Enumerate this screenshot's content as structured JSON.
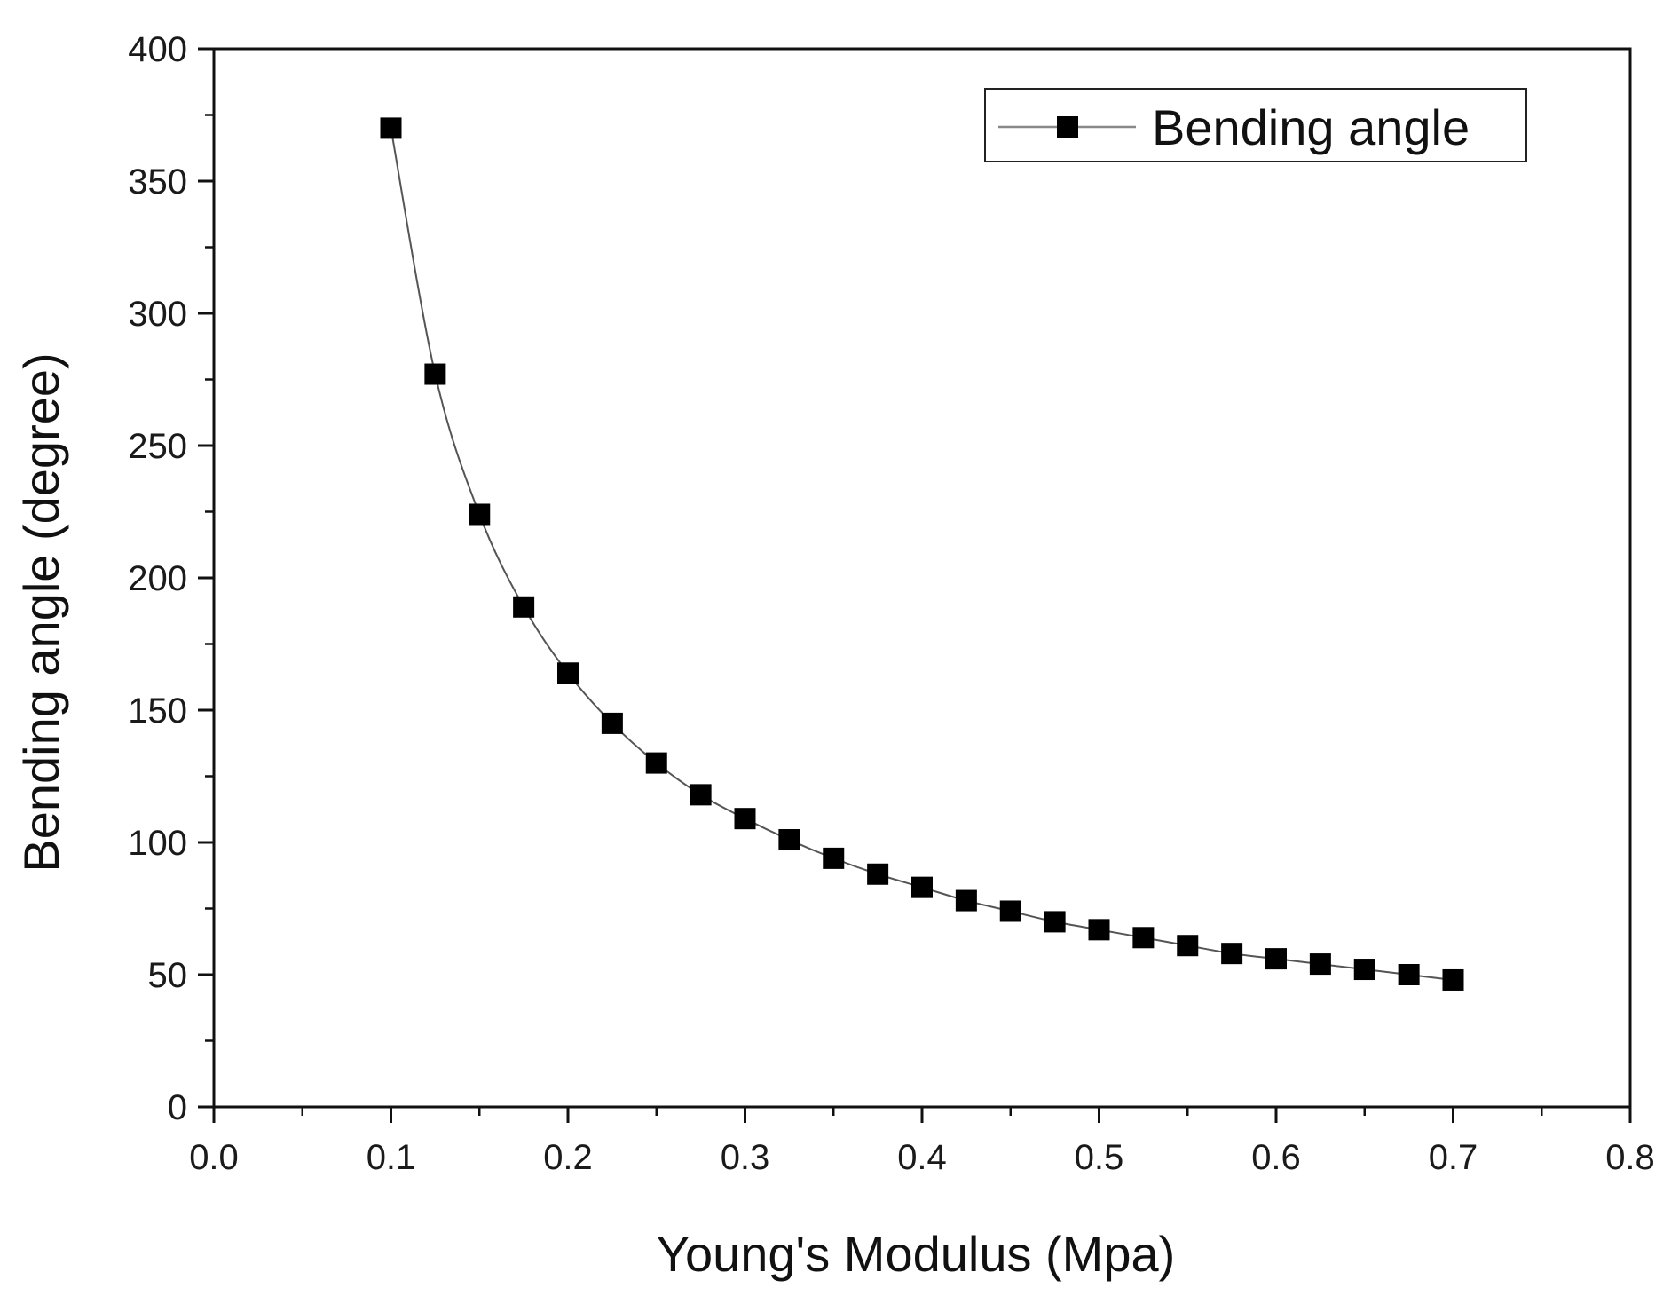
{
  "chart_data": {
    "type": "line",
    "title": "",
    "xlabel": "Young's Modulus (Mpa)",
    "ylabel": "Bending angle (degree)",
    "xlim": [
      0.0,
      0.8
    ],
    "ylim": [
      0,
      400
    ],
    "xticks": [
      "0.0",
      "0.1",
      "0.2",
      "0.3",
      "0.4",
      "0.5",
      "0.6",
      "0.7",
      "0.8"
    ],
    "yticks": [
      "0",
      "50",
      "100",
      "150",
      "200",
      "250",
      "300",
      "350",
      "400"
    ],
    "grid": false,
    "legend_position": "top-right",
    "series": [
      {
        "name": "Bending angle",
        "marker": "square",
        "line_color": "#555555",
        "marker_color": "#000000",
        "x": [
          0.1,
          0.125,
          0.15,
          0.175,
          0.2,
          0.225,
          0.25,
          0.275,
          0.3,
          0.325,
          0.35,
          0.375,
          0.4,
          0.425,
          0.45,
          0.475,
          0.5,
          0.525,
          0.55,
          0.575,
          0.6,
          0.625,
          0.65,
          0.675,
          0.7
        ],
        "y": [
          370,
          277,
          224,
          189,
          164,
          145,
          130,
          118,
          109,
          101,
          94,
          88,
          83,
          78,
          74,
          70,
          67,
          64,
          61,
          58,
          56,
          54,
          52,
          50,
          48
        ]
      }
    ]
  }
}
